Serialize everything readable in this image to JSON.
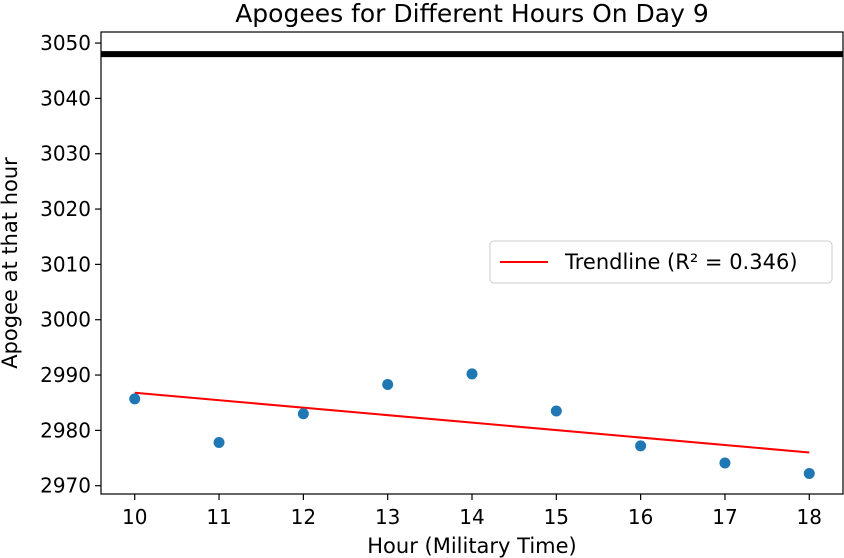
{
  "chart_data": {
    "type": "scatter",
    "title": "Apogees for Different Hours On Day 9",
    "xlabel": "Hour (Military Time)",
    "ylabel": "Apogee at that hour",
    "xlim": [
      9.6,
      18.4
    ],
    "ylim": [
      2968.5,
      3052
    ],
    "xticks": [
      10,
      11,
      12,
      13,
      14,
      15,
      16,
      17,
      18
    ],
    "yticks": [
      2970,
      2980,
      2990,
      3000,
      3010,
      3020,
      3030,
      3040,
      3050
    ],
    "grid": false,
    "points": {
      "x": [
        10,
        11,
        12,
        13,
        14,
        15,
        16,
        17,
        18
      ],
      "y": [
        2985.7,
        2977.8,
        2983.0,
        2988.3,
        2990.2,
        2983.5,
        2977.2,
        2974.1,
        2972.2
      ],
      "color": "#1f77b4"
    },
    "trendline": {
      "name": "Trendline (R² = 0.346)",
      "x": [
        10,
        18
      ],
      "y": [
        2986.8,
        2976.0
      ],
      "color": "#ff0000"
    },
    "reference_line": {
      "y": 3048,
      "color": "#000000"
    },
    "legend": {
      "placement": "center-right",
      "entries": [
        "Trendline (R² = 0.346)"
      ]
    }
  }
}
